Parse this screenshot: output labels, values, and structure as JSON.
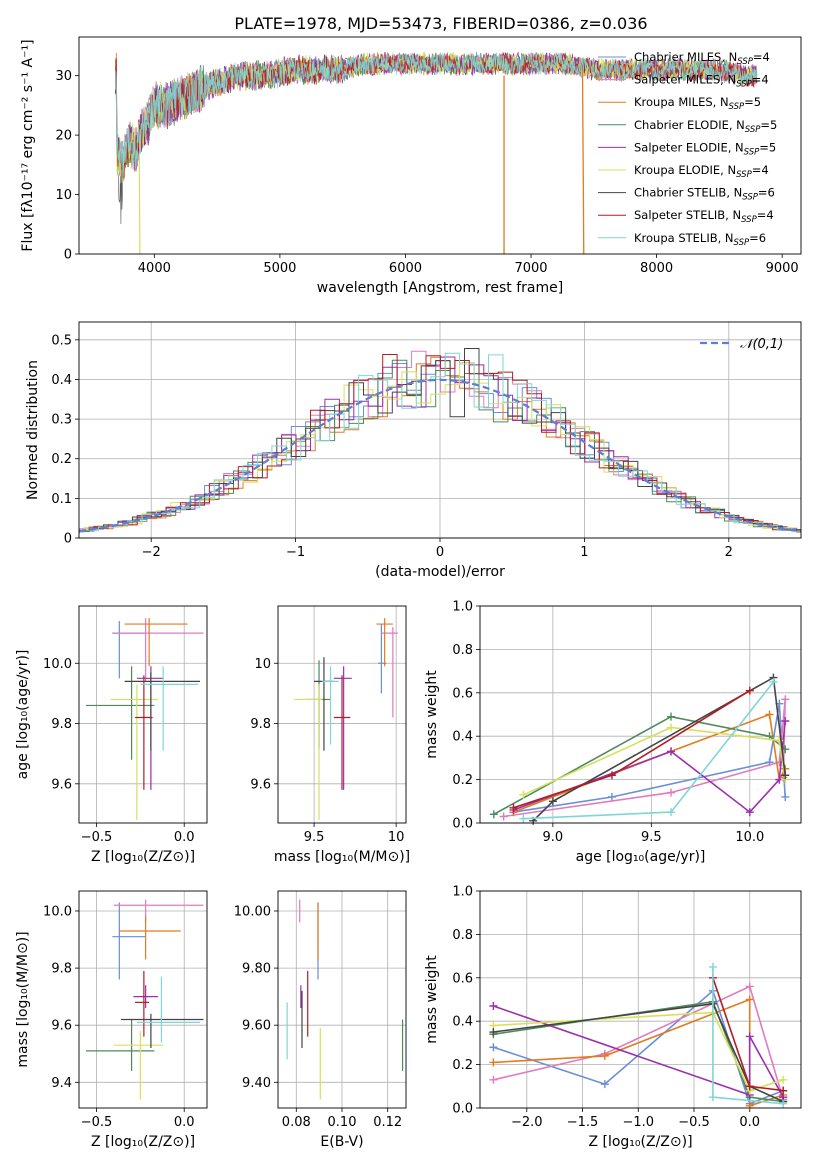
{
  "title": "PLATE=1978, MJD=53473, FIBERID=0386, z=0.036",
  "palette": [
    "#6a8fd8",
    "#e07bbf",
    "#e07b1f",
    "#4e8a5c",
    "#9b2fae",
    "#d6e05a",
    "#444444",
    "#b01e24",
    "#7ed6d6"
  ],
  "models": [
    {
      "name": "Chabrier MILES",
      "n": "4"
    },
    {
      "name": "Salpeter MILES",
      "n": "4"
    },
    {
      "name": "Kroupa MILES",
      "n": "5"
    },
    {
      "name": "Chabrier ELODIE",
      "n": "5"
    },
    {
      "name": "Salpeter ELODIE",
      "n": "5"
    },
    {
      "name": "Kroupa ELODIE",
      "n": "4"
    },
    {
      "name": "Chabrier STELIB",
      "n": "6"
    },
    {
      "name": "Salpeter STELIB",
      "n": "4"
    },
    {
      "name": "Kroupa STELIB",
      "n": "6"
    }
  ],
  "nssp_prefix": ", N",
  "nssp_sub": "SSP",
  "chart_data": [
    {
      "id": "spectrum",
      "type": "line",
      "xlabel": "wavelength [Angstrom, rest frame]",
      "ylabel": "Flux [fλ10⁻¹⁷ erg cm⁻² s⁻¹ A⁻¹]",
      "xlim": [
        3400,
        9150
      ],
      "ylim": [
        0,
        36.5
      ],
      "xticks": [
        4000,
        5000,
        6000,
        7000,
        8000,
        9000
      ],
      "yticks": [
        0,
        10,
        20,
        30
      ],
      "x": [
        3700,
        3750,
        3800,
        3850,
        3900,
        3950,
        4000,
        4100,
        4200,
        4300,
        4400,
        4500,
        4700,
        4900,
        5100,
        5300,
        5500,
        5700,
        5900,
        6100,
        6300,
        6500,
        6700,
        6900,
        7100,
        7300,
        7500,
        7700,
        7900,
        8100,
        8300,
        8500,
        8700,
        8800
      ],
      "y": [
        17,
        15,
        19,
        17,
        21,
        22,
        25,
        25,
        26,
        27,
        28,
        29,
        30,
        30,
        31,
        31,
        31,
        32,
        32,
        32,
        32,
        32,
        32,
        32,
        32,
        32,
        31,
        31,
        31,
        31,
        31,
        31,
        30,
        30
      ],
      "grid": false
    },
    {
      "id": "residuals",
      "type": "histogram",
      "xlabel": "(data-model)/error",
      "ylabel": "Normed distribution",
      "xlim": [
        -2.5,
        2.5
      ],
      "ylim": [
        0,
        0.545
      ],
      "xticks": [
        -2,
        -1,
        0,
        1,
        2
      ],
      "yticks": [
        0.0,
        0.1,
        0.2,
        0.3,
        0.4,
        0.5
      ],
      "legend": "𝒩(0,1)",
      "legend_position": "top-right",
      "grid": true
    },
    {
      "id": "age_vs_Z",
      "type": "errorbar",
      "xlabel": "Z [log₁₀(Z/Z⊙)]",
      "ylabel": "age  [log₁₀(age/yr)]",
      "xlim": [
        -0.6,
        0.13
      ],
      "ylim": [
        9.47,
        10.19
      ],
      "xticks": [
        -0.5,
        0.0
      ],
      "yticks": [
        9.6,
        9.8,
        10.0
      ],
      "points": [
        {
          "x": -0.37,
          "xe": [
            0.04,
            0.15
          ],
          "y": 10.1,
          "ye": [
            0.15,
            0.04
          ]
        },
        {
          "x": -0.22,
          "xe": [
            0.18,
            0.33
          ],
          "y": 10.1,
          "ye": [
            0.16,
            0.05
          ]
        },
        {
          "x": -0.2,
          "xe": [
            0.14,
            0.22
          ],
          "y": 10.13,
          "ye": [
            0.14,
            0.02
          ]
        },
        {
          "x": -0.3,
          "xe": [
            0.26,
            0.13
          ],
          "y": 9.86,
          "ye": [
            0.18,
            0.13
          ]
        },
        {
          "x": -0.19,
          "xe": [
            0.08,
            0.07
          ],
          "y": 9.95,
          "ye": [
            0.37,
            0.04
          ]
        },
        {
          "x": -0.27,
          "xe": [
            0.15,
            0.12
          ],
          "y": 9.88,
          "ye": [
            0.4,
            0.05
          ]
        },
        {
          "x": -0.19,
          "xe": [
            0.15,
            0.28
          ],
          "y": 9.94,
          "ye": [
            0.23,
            0.03
          ]
        },
        {
          "x": -0.23,
          "xe": [
            0.05,
            0.05
          ],
          "y": 9.82,
          "ye": [
            0.24,
            0.14
          ]
        },
        {
          "x": -0.12,
          "xe": [
            0.13,
            0.2
          ],
          "y": 9.93,
          "ye": [
            0.22,
            0.06
          ]
        }
      ]
    },
    {
      "id": "age_vs_mass",
      "type": "errorbar",
      "xlabel": "mass [log₁₀(M/M⊙)]",
      "ylabel": "",
      "xlim": [
        9.28,
        10.06
      ],
      "ylim": [
        9.47,
        10.19
      ],
      "xticks": [
        9.5,
        10.0
      ],
      "yticks": [
        9.6,
        9.8,
        10.0
      ],
      "points": [
        {
          "x": 9.91,
          "xe": [
            0.02,
            0.03
          ],
          "y": 10.0,
          "ye": [
            0.1,
            0.13
          ]
        },
        {
          "x": 9.98,
          "xe": [
            0.07,
            0.03
          ],
          "y": 10.1,
          "ye": [
            0.28,
            0.02
          ]
        },
        {
          "x": 9.93,
          "xe": [
            0.05,
            0.05
          ],
          "y": 10.13,
          "ye": [
            0.14,
            0.02
          ]
        },
        {
          "x": 9.53,
          "xe": [
            0.08,
            0.07
          ],
          "y": 9.88,
          "ye": [
            0.16,
            0.13
          ]
        },
        {
          "x": 9.68,
          "xe": [
            0.06,
            0.05
          ],
          "y": 9.95,
          "ye": [
            0.37,
            0.04
          ]
        },
        {
          "x": 9.53,
          "xe": [
            0.15,
            0.02
          ],
          "y": 9.88,
          "ye": [
            0.4,
            0.05
          ]
        },
        {
          "x": 9.56,
          "xe": [
            0.06,
            0.06
          ],
          "y": 9.94,
          "ye": [
            0.23,
            0.08
          ]
        },
        {
          "x": 9.67,
          "xe": [
            0.05,
            0.05
          ],
          "y": 9.82,
          "ye": [
            0.24,
            0.14
          ]
        },
        {
          "x": 9.6,
          "xe": [
            0.05,
            0.05
          ],
          "y": 9.94,
          "ye": [
            0.21,
            0.05
          ]
        }
      ]
    },
    {
      "id": "mass_weight_vs_age",
      "type": "line",
      "xlabel": "age  [log₁₀(age/yr)]",
      "ylabel": "mass weight",
      "xlim": [
        8.63,
        10.26
      ],
      "ylim": [
        0,
        1.0
      ],
      "xticks": [
        9.0,
        9.5,
        10.0
      ],
      "yticks": [
        0.0,
        0.2,
        0.4,
        0.6,
        0.8,
        1.0
      ],
      "series": [
        {
          "x": [
            8.8,
            9.3,
            10.1,
            10.15,
            10.18
          ],
          "y": [
            0.05,
            0.12,
            0.28,
            0.55,
            0.12
          ]
        },
        {
          "x": [
            8.75,
            9.6,
            10.15,
            10.18,
            10.17
          ],
          "y": [
            0.03,
            0.14,
            0.28,
            0.57,
            0.21
          ]
        },
        {
          "x": [
            8.8,
            9.6,
            10.1,
            10.15,
            10.18
          ],
          "y": [
            0.05,
            0.33,
            0.5,
            0.2,
            0.25
          ]
        },
        {
          "x": [
            8.7,
            9.6,
            10.1,
            10.18
          ],
          "y": [
            0.04,
            0.49,
            0.4,
            0.34
          ]
        },
        {
          "x": [
            8.8,
            9.6,
            10.0,
            10.15,
            10.18
          ],
          "y": [
            0.06,
            0.33,
            0.05,
            0.2,
            0.47
          ]
        },
        {
          "x": [
            8.85,
            9.6,
            10.15,
            10.18
          ],
          "y": [
            0.13,
            0.44,
            0.38,
            0.2
          ]
        },
        {
          "x": [
            8.9,
            9.0,
            10.12,
            10.18
          ],
          "y": [
            0.01,
            0.1,
            0.67,
            0.22
          ]
        },
        {
          "x": [
            8.8,
            9.3,
            10.0
          ],
          "y": [
            0.07,
            0.22,
            0.61
          ]
        },
        {
          "x": [
            8.85,
            9.6,
            10.12
          ],
          "y": [
            0.02,
            0.05,
            0.65
          ]
        }
      ]
    },
    {
      "id": "mass_vs_Z",
      "type": "errorbar",
      "xlabel": "Z [log₁₀(Z/Z⊙)]",
      "ylabel": "mass [log₁₀(M/M⊙)]",
      "xlim": [
        -0.6,
        0.13
      ],
      "ylim": [
        9.31,
        10.07
      ],
      "xticks": [
        -0.5,
        0.0
      ],
      "yticks": [
        9.4,
        9.6,
        9.8,
        10.0
      ],
      "points": [
        {
          "x": -0.37,
          "xe": [
            0.04,
            0.15
          ],
          "y": 9.91,
          "ye": [
            0.15,
            0.12
          ]
        },
        {
          "x": -0.22,
          "xe": [
            0.18,
            0.33
          ],
          "y": 10.02,
          "ye": [
            0.06,
            0.02
          ]
        },
        {
          "x": -0.22,
          "xe": [
            0.15,
            0.2
          ],
          "y": 9.93,
          "ye": [
            0.1,
            0.05
          ]
        },
        {
          "x": -0.3,
          "xe": [
            0.26,
            0.13
          ],
          "y": 9.51,
          "ye": [
            0.07,
            0.11
          ]
        },
        {
          "x": -0.22,
          "xe": [
            0.07,
            0.07
          ],
          "y": 9.7,
          "ye": [
            0.04,
            0.04
          ]
        },
        {
          "x": -0.25,
          "xe": [
            0.15,
            0.13
          ],
          "y": 9.53,
          "ye": [
            0.19,
            0.05
          ]
        },
        {
          "x": -0.19,
          "xe": [
            0.17,
            0.3
          ],
          "y": 9.62,
          "ye": [
            0.1,
            0.02
          ]
        },
        {
          "x": -0.23,
          "xe": [
            0.05,
            0.03
          ],
          "y": 9.68,
          "ye": [
            0.12,
            0.11
          ]
        },
        {
          "x": -0.13,
          "xe": [
            0.14,
            0.22
          ],
          "y": 9.61,
          "ye": [
            0.07,
            0.16
          ]
        }
      ]
    },
    {
      "id": "mass_vs_ebv",
      "type": "errorbar",
      "xlabel": "E(B-V)",
      "ylabel": "",
      "xlim": [
        0.072,
        0.128
      ],
      "ylim": [
        9.31,
        10.07
      ],
      "xticks": [
        0.08,
        0.1,
        0.12
      ],
      "yticks": [
        9.4,
        9.6,
        9.8,
        10.0
      ],
      "points": [
        {
          "x": 0.0895,
          "xe": [
            0,
            0
          ],
          "y": 9.91,
          "ye": [
            0.15,
            0.12
          ]
        },
        {
          "x": 0.0815,
          "xe": [
            0,
            0
          ],
          "y": 10.02,
          "ye": [
            0.06,
            0.02
          ]
        },
        {
          "x": 0.0895,
          "xe": [
            0,
            0
          ],
          "y": 9.93,
          "ye": [
            0.1,
            0.1
          ]
        },
        {
          "x": 0.1265,
          "xe": [
            0,
            0
          ],
          "y": 9.51,
          "ye": [
            0.07,
            0.11
          ]
        },
        {
          "x": 0.082,
          "xe": [
            0,
            0
          ],
          "y": 9.7,
          "ye": [
            0.04,
            0.04
          ]
        },
        {
          "x": 0.0905,
          "xe": [
            0,
            0
          ],
          "y": 9.53,
          "ye": [
            0.19,
            0.06
          ]
        },
        {
          "x": 0.0825,
          "xe": [
            0,
            0
          ],
          "y": 9.62,
          "ye": [
            0.1,
            0.1
          ]
        },
        {
          "x": 0.085,
          "xe": [
            0,
            0
          ],
          "y": 9.68,
          "ye": [
            0.12,
            0.11
          ]
        },
        {
          "x": 0.076,
          "xe": [
            0,
            0
          ],
          "y": 9.58,
          "ye": [
            0.1,
            0.1
          ]
        }
      ]
    },
    {
      "id": "mass_weight_vs_Z",
      "type": "line",
      "xlabel": "Z [log₁₀(Z/Z⊙)]",
      "ylabel": "mass weight",
      "xlim": [
        -2.42,
        0.46
      ],
      "ylim": [
        0,
        1.0
      ],
      "xticks": [
        -2.0,
        -1.5,
        -1.0,
        -0.5,
        0.0
      ],
      "yticks": [
        0.0,
        0.2,
        0.4,
        0.6,
        0.8,
        1.0
      ],
      "series": [
        {
          "x": [
            -2.3,
            -1.3,
            -0.33,
            0.0,
            0.3
          ],
          "y": [
            0.28,
            0.11,
            0.54,
            0.02,
            0.08
          ]
        },
        {
          "x": [
            -2.3,
            -1.3,
            0.0,
            0.3,
            0.3
          ],
          "y": [
            0.13,
            0.25,
            0.56,
            0.04,
            0.05
          ]
        },
        {
          "x": [
            -2.3,
            -1.3,
            0.0,
            0.0,
            0.3
          ],
          "y": [
            0.21,
            0.24,
            0.5,
            0.01,
            0.06
          ]
        },
        {
          "x": [
            -2.3,
            -0.33,
            0.0,
            0.3
          ],
          "y": [
            0.34,
            0.49,
            0.05,
            0.03
          ]
        },
        {
          "x": [
            -2.3,
            0.0,
            0.0,
            0.3
          ],
          "y": [
            0.47,
            0.06,
            0.33,
            0.05
          ]
        },
        {
          "x": [
            -2.3,
            -0.33,
            0.0,
            0.3
          ],
          "y": [
            0.38,
            0.44,
            0.08,
            0.13
          ]
        },
        {
          "x": [
            -2.3,
            -0.33,
            0.0,
            0.3
          ],
          "y": [
            0.35,
            0.48,
            0.1,
            0.03
          ]
        },
        {
          "x": [
            -0.33,
            0.0,
            0.3
          ],
          "y": [
            0.6,
            0.1,
            0.08
          ]
        },
        {
          "x": [
            -0.33,
            -0.33,
            0.3
          ],
          "y": [
            0.65,
            0.05,
            0.02
          ]
        }
      ]
    }
  ]
}
